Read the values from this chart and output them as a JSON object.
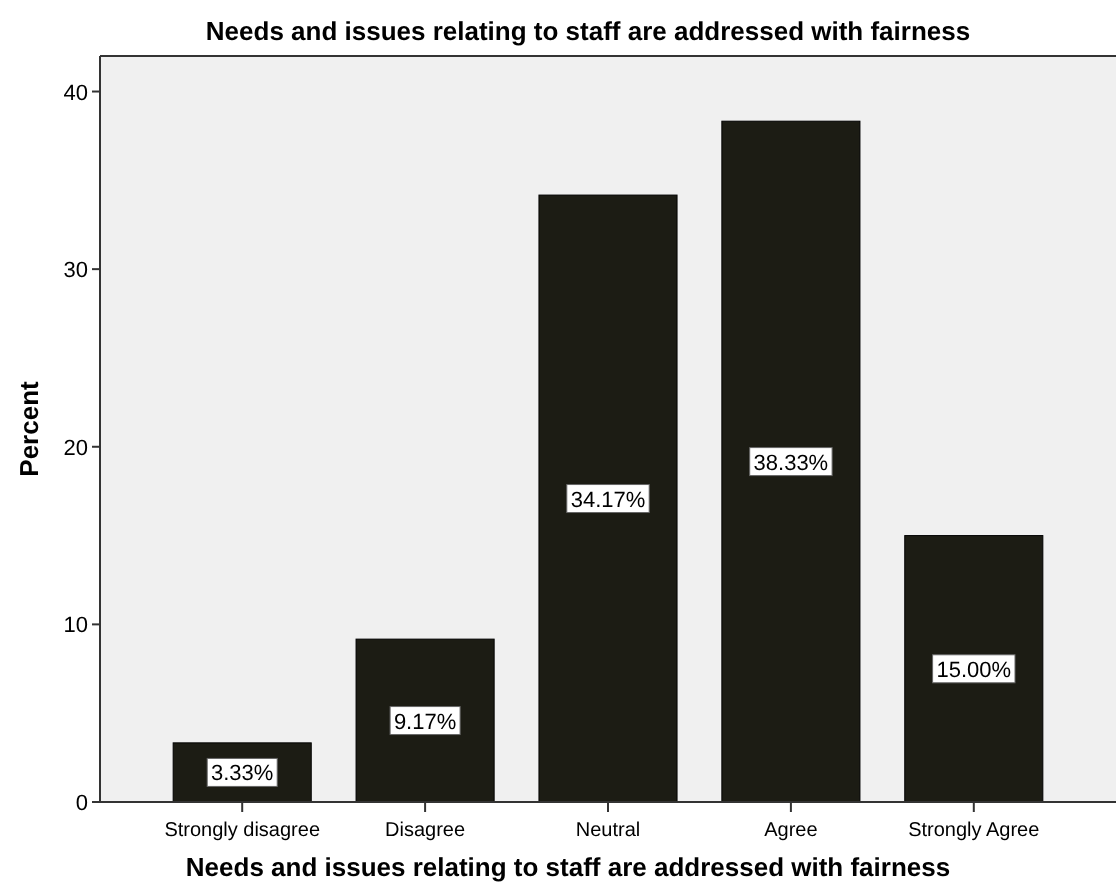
{
  "chart_data": {
    "type": "bar",
    "title": "Needs and issues relating to staff are addressed with fairness",
    "xlabel": "Needs and issues relating to staff are addressed with fairness",
    "ylabel": "Percent",
    "categories": [
      "Strongly disagree",
      "Disagree",
      "Neutral",
      "Agree",
      "Strongly Agree"
    ],
    "values": [
      3.33,
      9.17,
      34.17,
      38.33,
      15.0
    ],
    "value_labels": [
      "3.33%",
      "9.17%",
      "34.17%",
      "38.33%",
      "15.00%"
    ],
    "color": "#1c1c14",
    "ylim": [
      0,
      42
    ],
    "yticks": [
      0,
      10,
      20,
      30,
      40
    ],
    "grid": false
  }
}
